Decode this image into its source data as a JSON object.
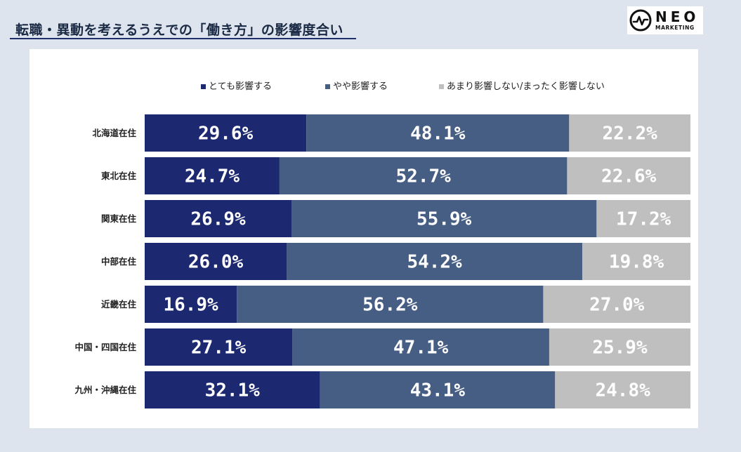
{
  "header": {
    "title": "転職・異動を考えるうえでの「働き方」の影響度合い",
    "logo": {
      "name": "NEO",
      "sub": "MARKETING"
    }
  },
  "colors": {
    "strong": "#1c2870",
    "some": "#475e84",
    "none": "#bfbfbf",
    "label_light": "#ffffff"
  },
  "chart_data": {
    "type": "bar",
    "stacked": true,
    "orientation": "horizontal",
    "normalized": true,
    "categories": [
      "北海道在住",
      "東北在住",
      "関東在住",
      "中部在住",
      "近畿在住",
      "中国・四国在住",
      "九州・沖縄在住"
    ],
    "series": [
      {
        "name": "とても影響する",
        "color": "#1c2870",
        "values": [
          29.6,
          24.7,
          26.9,
          26.0,
          16.9,
          27.1,
          32.1
        ],
        "labels": [
          "29.6%",
          "24.7%",
          "26.9%",
          "26.0%",
          "16.9%",
          "27.1%",
          "32.1%"
        ]
      },
      {
        "name": "やや影響する",
        "color": "#475e84",
        "values": [
          48.1,
          52.7,
          55.9,
          54.2,
          56.2,
          47.1,
          43.1
        ],
        "labels": [
          "48.1%",
          "52.7%",
          "55.9%",
          "54.2%",
          "56.2%",
          "47.1%",
          "43.1%"
        ]
      },
      {
        "name": "あまり影響しない/まったく影響しない",
        "color": "#bfbfbf",
        "values": [
          22.2,
          22.6,
          17.2,
          19.8,
          27.0,
          25.9,
          24.8
        ],
        "labels": [
          "22.2%",
          "22.6%",
          "17.2%",
          "19.8%",
          "27.0%",
          "25.9%",
          "24.8%"
        ]
      }
    ],
    "legend_position": "top",
    "grid": false
  }
}
